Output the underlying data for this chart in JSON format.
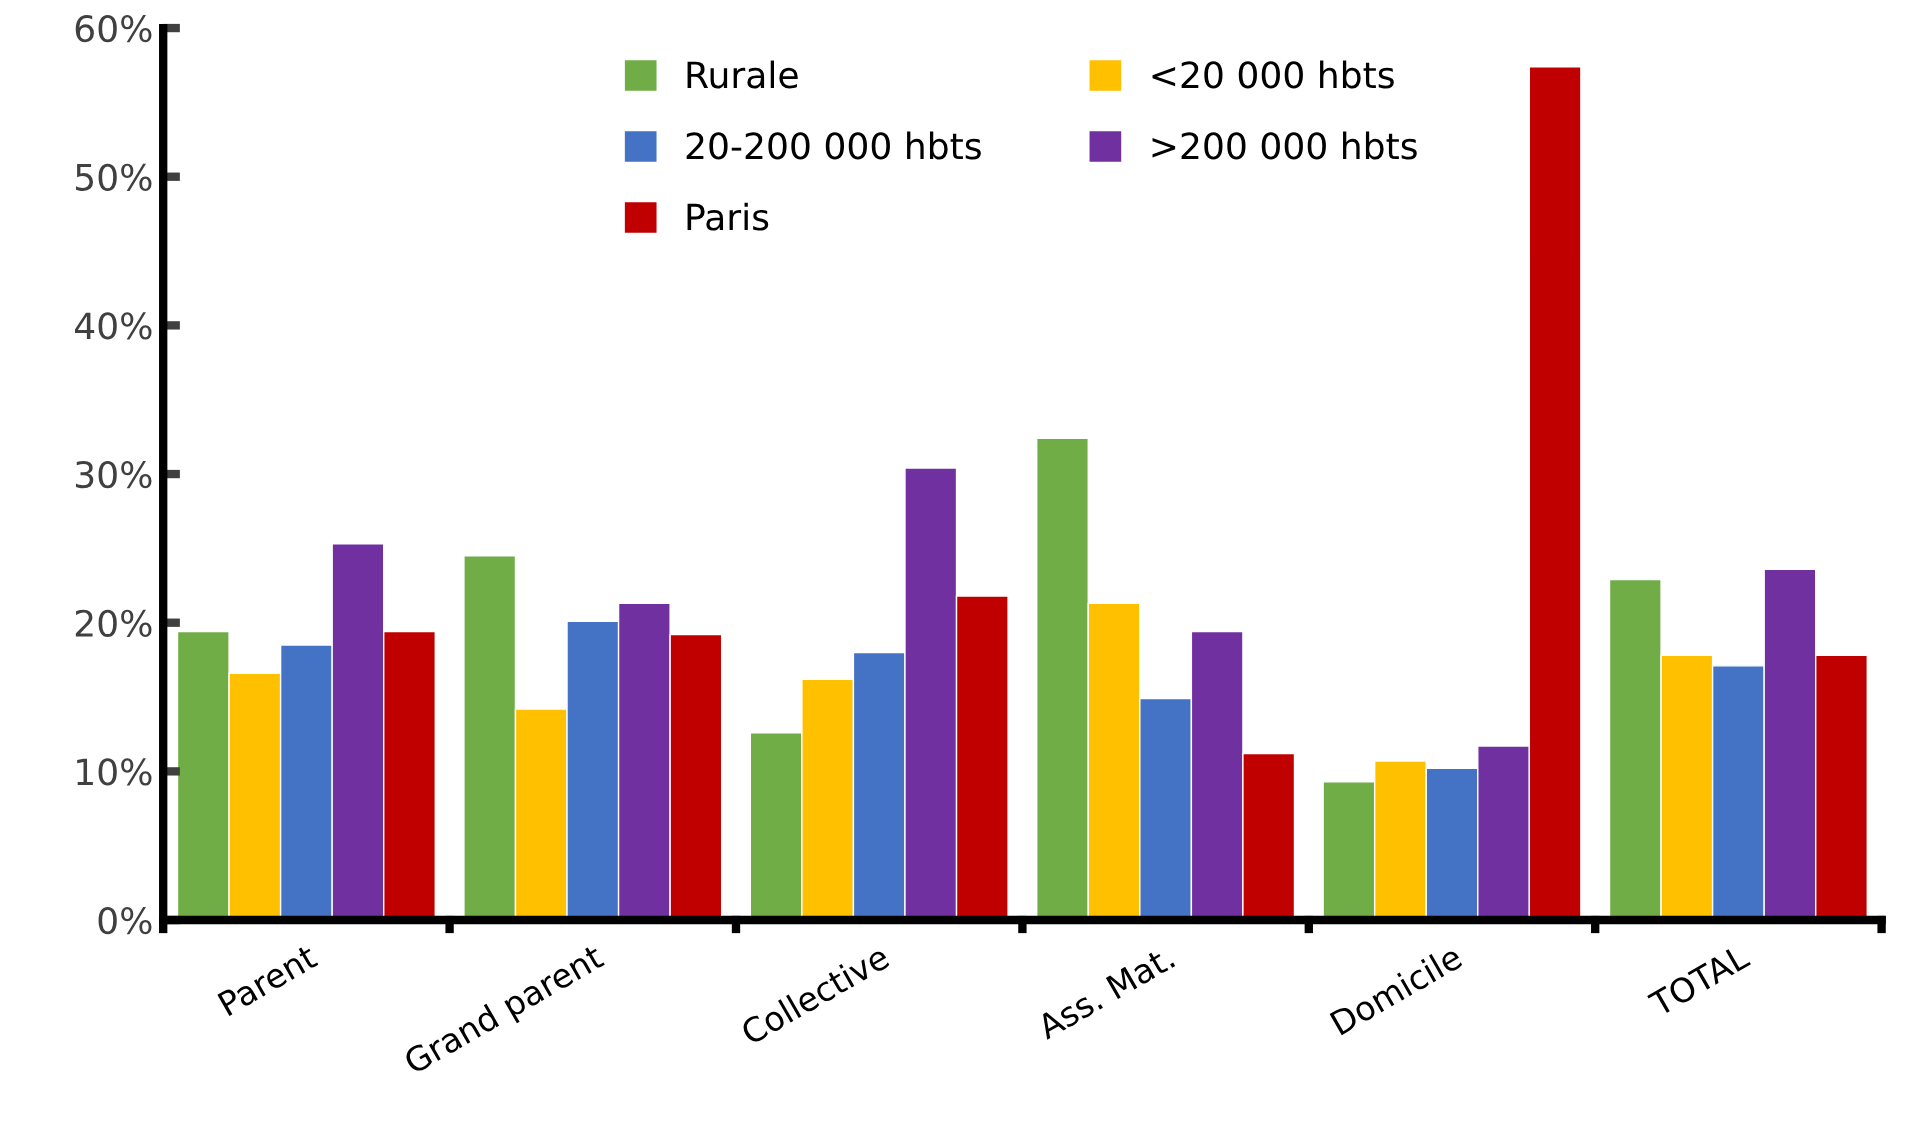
{
  "chart_data": {
    "type": "bar",
    "categories": [
      "Parent",
      "Grand parent",
      "Collective",
      "Ass. Mat.",
      "Domicile",
      "TOTAL"
    ],
    "series": [
      {
        "name": "Rurale",
        "color": "#70ad47",
        "values": [
          19.4,
          24.5,
          12.6,
          32.4,
          9.3,
          22.9
        ]
      },
      {
        "name": "<20 000 hbts",
        "color": "#ffc000",
        "values": [
          16.6,
          14.2,
          16.2,
          21.3,
          10.7,
          17.8
        ]
      },
      {
        "name": "20-200 000 hbts",
        "color": "#4472c4",
        "values": [
          18.5,
          20.1,
          18.0,
          14.9,
          10.2,
          17.1
        ]
      },
      {
        "name": ">200 000 hbts",
        "color": "#7030a0",
        "values": [
          25.3,
          21.3,
          30.4,
          19.4,
          11.7,
          23.6
        ]
      },
      {
        "name": "Paris",
        "color": "#c00000",
        "values": [
          19.4,
          19.2,
          21.8,
          11.2,
          57.4,
          17.8
        ]
      }
    ],
    "ylim": [
      0,
      60
    ],
    "yticks": [
      {
        "value": 0,
        "label": "0%"
      },
      {
        "value": 10,
        "label": "10%"
      },
      {
        "value": 20,
        "label": "20%"
      },
      {
        "value": 30,
        "label": "30%"
      },
      {
        "value": 40,
        "label": "40%"
      },
      {
        "value": 50,
        "label": "50%"
      },
      {
        "value": 60,
        "label": "60%"
      }
    ],
    "grid": false,
    "legend": "top"
  }
}
